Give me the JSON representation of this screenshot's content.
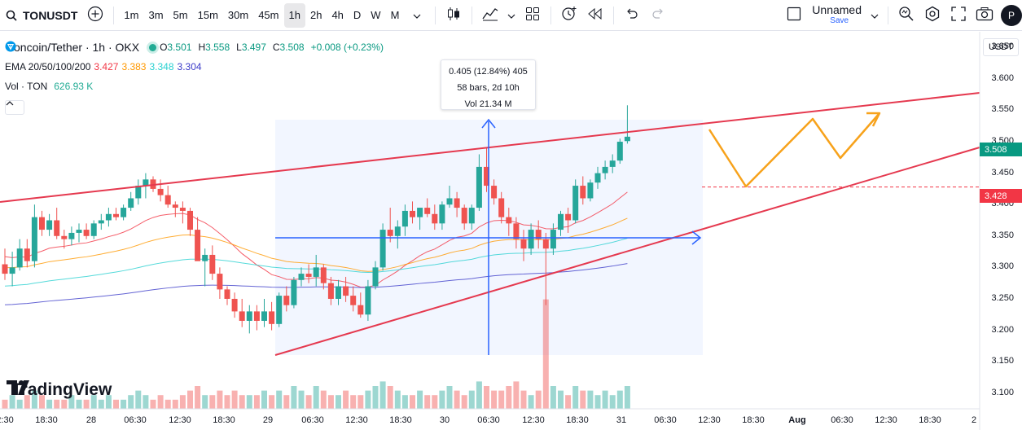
{
  "toolbar": {
    "symbol": "TONUSDT",
    "intervals": [
      "1m",
      "3m",
      "5m",
      "15m",
      "30m",
      "45m",
      "1h",
      "2h",
      "4h",
      "D",
      "W",
      "M"
    ],
    "active_interval": "1h",
    "layout_name": "Unnamed",
    "layout_save": "Save",
    "avatar_letter": "P",
    "icons": [
      "search-icon",
      "plus-icon",
      "chevron-down-icon",
      "candles-icon",
      "indicators-icon",
      "chevron-down-icon",
      "layout-grid-icon",
      "alert-add-icon",
      "replay-icon",
      "undo-icon",
      "redo-icon",
      "checkbox-icon",
      "quick-search-icon",
      "settings-gear-icon",
      "fullscreen-icon",
      "camera-icon"
    ]
  },
  "legend": {
    "title": "Toncoin/Tether · 1h · OKX",
    "ohlc": [
      {
        "k": "O",
        "v": "3.501"
      },
      {
        "k": "H",
        "v": "3.558"
      },
      {
        "k": "L",
        "v": "3.497"
      },
      {
        "k": "C",
        "v": "3.508"
      },
      {
        "k": "",
        "v": "+0.008 (+0.23%)"
      }
    ],
    "ema_label": "EMA 20/50/100/200",
    "ema_values": [
      {
        "v": "3.427",
        "color": "#f23645"
      },
      {
        "v": "3.383",
        "color": "#ff9800"
      },
      {
        "v": "3.348",
        "color": "#2ad1d1"
      },
      {
        "v": "3.304",
        "color": "#3d3dc9"
      }
    ],
    "vol_label": "Vol · TON",
    "vol_value": "626.93 K"
  },
  "measure": {
    "line1": "0.405 (12.84%) 405",
    "line2": "58 bars, 2d 10h",
    "line3": "Vol 21.34 M"
  },
  "price_scale": {
    "currency": "USDT",
    "labels": [
      "3.650",
      "3.600",
      "3.550",
      "3.500",
      "3.450",
      "3.400",
      "3.350",
      "3.300",
      "3.250",
      "3.200",
      "3.150",
      "3.100"
    ],
    "last_price": "3.508",
    "ema_price": "3.428"
  },
  "time_axis": {
    "labels": [
      {
        "t": "2:30",
        "x": 6
      },
      {
        "t": "18:30",
        "x": 57
      },
      {
        "t": "28",
        "x": 112,
        "bold": false
      },
      {
        "t": "06:30",
        "x": 166
      },
      {
        "t": "12:30",
        "x": 221
      },
      {
        "t": "18:30",
        "x": 275
      },
      {
        "t": "29",
        "x": 329
      },
      {
        "t": "06:30",
        "x": 384
      },
      {
        "t": "12:30",
        "x": 438
      },
      {
        "t": "18:30",
        "x": 492
      },
      {
        "t": "30",
        "x": 546
      },
      {
        "t": "06:30",
        "x": 600
      },
      {
        "t": "12:30",
        "x": 655
      },
      {
        "t": "18:30",
        "x": 709
      },
      {
        "t": "31",
        "x": 763
      },
      {
        "t": "06:30",
        "x": 817
      },
      {
        "t": "12:30",
        "x": 871
      },
      {
        "t": "18:30",
        "x": 925
      },
      {
        "t": "Aug",
        "x": 979,
        "bold": true
      },
      {
        "t": "06:30",
        "x": 1034
      },
      {
        "t": "12:30",
        "x": 1088
      },
      {
        "t": "18:30",
        "x": 1142
      },
      {
        "t": "2",
        "x": 1196
      }
    ]
  },
  "logo_text": "TradingView",
  "colors": {
    "up": "#26a69a",
    "down": "#ef5350",
    "trend": "#e5394f",
    "arrow_orange": "#f7a21b",
    "measure_blue": "#2962ff",
    "last_price_bg": "#089981",
    "ema_price_bg": "#f23645"
  },
  "chart_data": {
    "type": "candlestick",
    "interval": "1h",
    "ylim": [
      3.075,
      3.675
    ],
    "candles_ohlc": [
      [
        3.305,
        3.33,
        3.28,
        3.29
      ],
      [
        3.29,
        3.325,
        3.27,
        3.3
      ],
      [
        3.3,
        3.345,
        3.295,
        3.33
      ],
      [
        3.33,
        3.345,
        3.3,
        3.31
      ],
      [
        3.31,
        3.4,
        3.3,
        3.38
      ],
      [
        3.38,
        3.39,
        3.35,
        3.36
      ],
      [
        3.36,
        3.385,
        3.35,
        3.375
      ],
      [
        3.375,
        3.395,
        3.345,
        3.35
      ],
      [
        3.35,
        3.36,
        3.33,
        3.345
      ],
      [
        3.345,
        3.365,
        3.335,
        3.355
      ],
      [
        3.355,
        3.37,
        3.34,
        3.36
      ],
      [
        3.36,
        3.37,
        3.345,
        3.35
      ],
      [
        3.35,
        3.375,
        3.345,
        3.37
      ],
      [
        3.37,
        3.385,
        3.36,
        3.375
      ],
      [
        3.375,
        3.395,
        3.365,
        3.385
      ],
      [
        3.385,
        3.395,
        3.375,
        3.38
      ],
      [
        3.38,
        3.4,
        3.375,
        3.395
      ],
      [
        3.395,
        3.42,
        3.39,
        3.41
      ],
      [
        3.41,
        3.44,
        3.4,
        3.43
      ],
      [
        3.43,
        3.45,
        3.41,
        3.44
      ],
      [
        3.44,
        3.445,
        3.42,
        3.425
      ],
      [
        3.425,
        3.44,
        3.405,
        3.415
      ],
      [
        3.415,
        3.43,
        3.395,
        3.4
      ],
      [
        3.4,
        3.405,
        3.38,
        3.395
      ],
      [
        3.395,
        3.405,
        3.37,
        3.39
      ],
      [
        3.39,
        3.395,
        3.35,
        3.36
      ],
      [
        3.36,
        3.38,
        3.33,
        3.31
      ],
      [
        3.31,
        3.33,
        3.27,
        3.32
      ],
      [
        3.32,
        3.335,
        3.28,
        3.29
      ],
      [
        3.29,
        3.3,
        3.25,
        3.265
      ],
      [
        3.265,
        3.27,
        3.24,
        3.25
      ],
      [
        3.25,
        3.26,
        3.22,
        3.23
      ],
      [
        3.23,
        3.25,
        3.205,
        3.215
      ],
      [
        3.215,
        3.24,
        3.195,
        3.23
      ],
      [
        3.23,
        3.24,
        3.2,
        3.215
      ],
      [
        3.215,
        3.25,
        3.205,
        3.23
      ],
      [
        3.23,
        3.245,
        3.2,
        3.21
      ],
      [
        3.21,
        3.26,
        3.205,
        3.255
      ],
      [
        3.255,
        3.27,
        3.23,
        3.24
      ],
      [
        3.24,
        3.285,
        3.235,
        3.28
      ],
      [
        3.28,
        3.3,
        3.27,
        3.29
      ],
      [
        3.29,
        3.305,
        3.275,
        3.285
      ],
      [
        3.285,
        3.32,
        3.27,
        3.3
      ],
      [
        3.3,
        3.305,
        3.265,
        3.275
      ],
      [
        3.275,
        3.285,
        3.24,
        3.25
      ],
      [
        3.25,
        3.28,
        3.24,
        3.27
      ],
      [
        3.27,
        3.285,
        3.245,
        3.255
      ],
      [
        3.255,
        3.27,
        3.23,
        3.24
      ],
      [
        3.24,
        3.26,
        3.22,
        3.225
      ],
      [
        3.225,
        3.28,
        3.215,
        3.27
      ],
      [
        3.27,
        3.31,
        3.265,
        3.3
      ],
      [
        3.3,
        3.37,
        3.295,
        3.36
      ],
      [
        3.36,
        3.395,
        3.34,
        3.35
      ],
      [
        3.35,
        3.375,
        3.33,
        3.365
      ],
      [
        3.365,
        3.4,
        3.35,
        3.39
      ],
      [
        3.39,
        3.405,
        3.37,
        3.38
      ],
      [
        3.38,
        3.395,
        3.36,
        3.395
      ],
      [
        3.395,
        3.41,
        3.38,
        3.385
      ],
      [
        3.385,
        3.4,
        3.36,
        3.37
      ],
      [
        3.37,
        3.405,
        3.36,
        3.4
      ],
      [
        3.4,
        3.43,
        3.395,
        3.41
      ],
      [
        3.41,
        3.42,
        3.38,
        3.395
      ],
      [
        3.395,
        3.4,
        3.36,
        3.37
      ],
      [
        3.37,
        3.4,
        3.36,
        3.395
      ],
      [
        3.395,
        3.48,
        3.39,
        3.46
      ],
      [
        3.46,
        3.49,
        3.42,
        3.43
      ],
      [
        3.43,
        3.44,
        3.4,
        3.41
      ],
      [
        3.41,
        3.42,
        3.37,
        3.38
      ],
      [
        3.38,
        3.395,
        3.35,
        3.37
      ],
      [
        3.37,
        3.38,
        3.33,
        3.345
      ],
      [
        3.345,
        3.36,
        3.31,
        3.33
      ],
      [
        3.33,
        3.37,
        3.32,
        3.36
      ],
      [
        3.36,
        3.375,
        3.33,
        3.345
      ],
      [
        3.345,
        3.355,
        3.24,
        3.33
      ],
      [
        3.33,
        3.37,
        3.32,
        3.36
      ],
      [
        3.36,
        3.39,
        3.35,
        3.385
      ],
      [
        3.385,
        3.395,
        3.355,
        3.375
      ],
      [
        3.375,
        3.44,
        3.37,
        3.43
      ],
      [
        3.43,
        3.445,
        3.4,
        3.41
      ],
      [
        3.41,
        3.44,
        3.405,
        3.435
      ],
      [
        3.435,
        3.46,
        3.425,
        3.45
      ],
      [
        3.45,
        3.47,
        3.44,
        3.46
      ],
      [
        3.46,
        3.48,
        3.45,
        3.47
      ],
      [
        3.47,
        3.505,
        3.465,
        3.5
      ],
      [
        3.501,
        3.558,
        3.497,
        3.508
      ]
    ],
    "volume": [
      2,
      3,
      2,
      3,
      4,
      3,
      2,
      2,
      2,
      3,
      2,
      2,
      3,
      2,
      3,
      2,
      2,
      3,
      4,
      3,
      2,
      3,
      2,
      2,
      3,
      4,
      5,
      3,
      3,
      4,
      3,
      4,
      3,
      3,
      3,
      4,
      3,
      4,
      3,
      5,
      4,
      3,
      5,
      4,
      3,
      3,
      4,
      3,
      3,
      4,
      5,
      6,
      5,
      4,
      3,
      3,
      4,
      3,
      3,
      4,
      5,
      4,
      3,
      4,
      6,
      5,
      4,
      4,
      5,
      6,
      4,
      3,
      4,
      24,
      5,
      4,
      3,
      5,
      4,
      4,
      3,
      4,
      3,
      4,
      5
    ],
    "ema_lines": [
      "EMA 20",
      "EMA 50",
      "EMA 100",
      "EMA 200"
    ]
  }
}
